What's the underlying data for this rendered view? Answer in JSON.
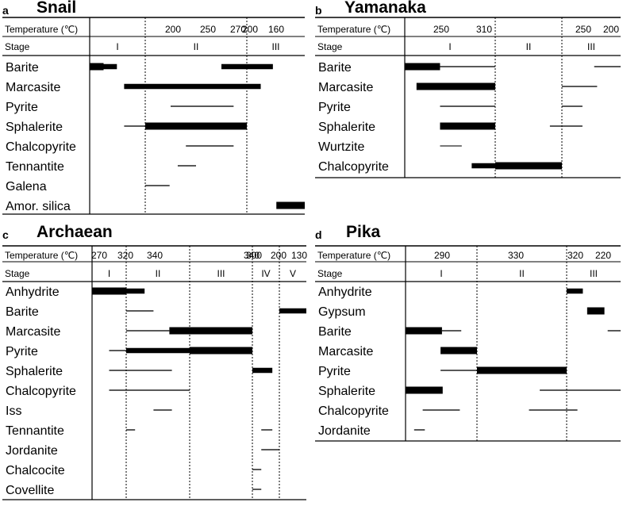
{
  "chart_data": [
    {
      "type": "table",
      "panel_letter": "a",
      "title": "Snail",
      "temperature_label": "Temperature (℃)",
      "stage_label": "Stage",
      "temperature_ticks": [
        "200",
        "250",
        "270",
        "200",
        "160"
      ],
      "stages": [
        "I",
        "II",
        "III"
      ],
      "minerals": [
        {
          "name": "Barite",
          "segments": [
            {
              "from": 0.0,
              "to": 0.25,
              "style": "thick"
            },
            {
              "from": 0.25,
              "to": 0.49,
              "style": "medium"
            },
            {
              "from": 1.75,
              "to": 2.45,
              "style": "medium"
            }
          ]
        },
        {
          "name": "Marcasite",
          "segments": [
            {
              "from": 0.62,
              "to": 2.24,
              "style": "medium"
            }
          ]
        },
        {
          "name": "Pyrite",
          "segments": [
            {
              "from": 1.25,
              "to": 1.87,
              "style": "thin"
            }
          ]
        },
        {
          "name": "Sphalerite",
          "segments": [
            {
              "from": 0.62,
              "to": 1.0,
              "style": "thin"
            },
            {
              "from": 1.0,
              "to": 2.0,
              "style": "thick"
            }
          ]
        },
        {
          "name": "Chalcopyrite",
          "segments": [
            {
              "from": 1.4,
              "to": 1.87,
              "style": "thin"
            }
          ]
        },
        {
          "name": "Tennantite",
          "segments": [
            {
              "from": 1.32,
              "to": 1.5,
              "style": "thin"
            }
          ]
        },
        {
          "name": "Galena",
          "segments": [
            {
              "from": 1.0,
              "to": 1.24,
              "style": "thin"
            }
          ]
        },
        {
          "name": "Amor. silica",
          "segments": [
            {
              "from": 2.51,
              "to": 3.0,
              "style": "thick"
            }
          ]
        }
      ]
    },
    {
      "type": "table",
      "panel_letter": "b",
      "title": "Yamanaka",
      "temperature_label": "Temperature (℃)",
      "stage_label": "Stage",
      "temperature_ticks": [
        "250",
        "310",
        "250",
        "200"
      ],
      "stages": [
        "I",
        "II",
        "III"
      ],
      "minerals": [
        {
          "name": "Barite",
          "segments": [
            {
              "from": 0.0,
              "to": 0.39,
              "style": "thick"
            },
            {
              "from": 0.39,
              "to": 1.0,
              "style": "thin"
            },
            {
              "from": 2.55,
              "to": 3.0,
              "style": "thin"
            }
          ]
        },
        {
          "name": "Marcasite",
          "segments": [
            {
              "from": 0.13,
              "to": 1.0,
              "style": "thick"
            },
            {
              "from": 2.0,
              "to": 2.6,
              "style": "thin"
            }
          ]
        },
        {
          "name": "Pyrite",
          "segments": [
            {
              "from": 0.39,
              "to": 1.0,
              "style": "thin"
            },
            {
              "from": 2.0,
              "to": 2.35,
              "style": "thin"
            }
          ]
        },
        {
          "name": "Sphalerite",
          "segments": [
            {
              "from": 0.39,
              "to": 1.0,
              "style": "thick"
            },
            {
              "from": 1.82,
              "to": 2.0,
              "style": "thin"
            },
            {
              "from": 2.0,
              "to": 2.35,
              "style": "thin"
            }
          ]
        },
        {
          "name": "Wurtzite",
          "segments": [
            {
              "from": 0.39,
              "to": 0.63,
              "style": "thin-gray"
            }
          ]
        },
        {
          "name": "Chalcopyrite",
          "segments": [
            {
              "from": 0.74,
              "to": 1.0,
              "style": "medium"
            },
            {
              "from": 1.0,
              "to": 2.0,
              "style": "thick"
            }
          ]
        }
      ]
    },
    {
      "type": "table",
      "panel_letter": "c",
      "title": "Archaean",
      "temperature_label": "Temperature (℃)",
      "stage_label": "Stage",
      "temperature_ticks": [
        "270",
        "320",
        "340",
        "340",
        "300",
        "200",
        "130"
      ],
      "stages": [
        "I",
        "II",
        "III",
        "IV",
        "V"
      ],
      "minerals": [
        {
          "name": "Anhydrite",
          "segments": [
            {
              "from": 0.0,
              "to": 1.0,
              "style": "thick"
            },
            {
              "from": 1.0,
              "to": 1.29,
              "style": "medium"
            }
          ]
        },
        {
          "name": "Barite",
          "segments": [
            {
              "from": 1.0,
              "to": 1.43,
              "style": "thin"
            },
            {
              "from": 4.0,
              "to": 5.0,
              "style": "medium"
            }
          ]
        },
        {
          "name": "Marcasite",
          "segments": [
            {
              "from": 1.0,
              "to": 1.68,
              "style": "thin"
            },
            {
              "from": 1.68,
              "to": 3.0,
              "style": "thick"
            }
          ]
        },
        {
          "name": "Pyrite",
          "segments": [
            {
              "from": 0.5,
              "to": 1.0,
              "style": "thin"
            },
            {
              "from": 1.0,
              "to": 2.0,
              "style": "medium"
            },
            {
              "from": 2.0,
              "to": 3.0,
              "style": "thick"
            }
          ]
        },
        {
          "name": "Sphalerite",
          "segments": [
            {
              "from": 0.5,
              "to": 1.72,
              "style": "thin"
            },
            {
              "from": 3.0,
              "to": 3.74,
              "style": "medium"
            }
          ]
        },
        {
          "name": "Chalcopyrite",
          "segments": [
            {
              "from": 0.5,
              "to": 2.0,
              "style": "thin"
            }
          ]
        },
        {
          "name": "Iss",
          "segments": [
            {
              "from": 1.43,
              "to": 1.72,
              "style": "thin"
            }
          ]
        },
        {
          "name": "Tennantite",
          "segments": [
            {
              "from": 1.0,
              "to": 1.14,
              "style": "thin"
            },
            {
              "from": 3.33,
              "to": 3.74,
              "style": "thin"
            }
          ]
        },
        {
          "name": "Jordanite",
          "segments": [
            {
              "from": 3.33,
              "to": 4.0,
              "style": "thin"
            }
          ]
        },
        {
          "name": "Chalcocite",
          "segments": [
            {
              "from": 3.0,
              "to": 3.33,
              "style": "thin"
            }
          ]
        },
        {
          "name": "Covellite",
          "segments": [
            {
              "from": 3.0,
              "to": 3.33,
              "style": "thin"
            }
          ]
        }
      ]
    },
    {
      "type": "table",
      "panel_letter": "d",
      "title": "Pika",
      "temperature_label": "Temperature (℃)",
      "stage_label": "Stage",
      "temperature_ticks": [
        "290",
        "330",
        "320",
        "220"
      ],
      "stages": [
        "I",
        "II",
        "III"
      ],
      "minerals": [
        {
          "name": "Anhydrite",
          "segments": [
            {
              "from": 2.0,
              "to": 2.3,
              "style": "medium"
            }
          ]
        },
        {
          "name": "Gypsum",
          "segments": [
            {
              "from": 2.38,
              "to": 2.7,
              "style": "thick"
            }
          ]
        },
        {
          "name": "Barite",
          "segments": [
            {
              "from": 0.0,
              "to": 0.51,
              "style": "thick"
            },
            {
              "from": 0.51,
              "to": 0.78,
              "style": "thin"
            },
            {
              "from": 2.76,
              "to": 3.0,
              "style": "thin"
            }
          ]
        },
        {
          "name": "Marcasite",
          "segments": [
            {
              "from": 0.49,
              "to": 1.0,
              "style": "thick"
            }
          ]
        },
        {
          "name": "Pyrite",
          "segments": [
            {
              "from": 0.49,
              "to": 1.0,
              "style": "thin"
            },
            {
              "from": 1.0,
              "to": 2.0,
              "style": "thick"
            }
          ]
        },
        {
          "name": "Sphalerite",
          "segments": [
            {
              "from": 0.0,
              "to": 0.52,
              "style": "thick"
            },
            {
              "from": 1.7,
              "to": 3.0,
              "style": "thin"
            }
          ]
        },
        {
          "name": "Chalcopyrite",
          "segments": [
            {
              "from": 0.24,
              "to": 0.76,
              "style": "thin"
            },
            {
              "from": 1.58,
              "to": 2.2,
              "style": "thin"
            }
          ]
        },
        {
          "name": "Jordanite",
          "segments": [
            {
              "from": 0.12,
              "to": 0.27,
              "style": "thin"
            }
          ]
        }
      ]
    }
  ]
}
